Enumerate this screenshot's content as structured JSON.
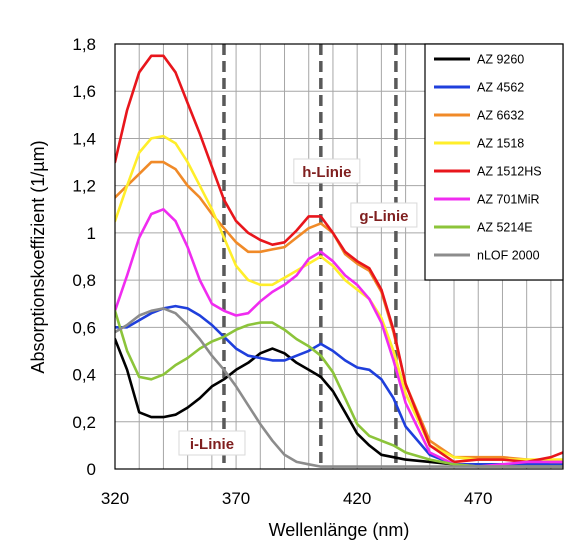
{
  "chart_data": {
    "type": "line",
    "xlabel": "Wellenlänge (nm)",
    "ylabel": "Absorptionskoeffizient (1/µm)",
    "xlim": [
      320,
      505
    ],
    "ylim": [
      0,
      1.8
    ],
    "x_ticks": [
      320,
      370,
      420,
      470
    ],
    "x_tick_labels": [
      "320",
      "370",
      "420",
      "470"
    ],
    "y_ticks": [
      0,
      0.2,
      0.4,
      0.6,
      0.8,
      1.0,
      1.2,
      1.4,
      1.6,
      1.8
    ],
    "y_tick_labels": [
      "0",
      "0,2",
      "0,4",
      "0,6",
      "0,8",
      "1",
      "1,2",
      "1,4",
      "1,6",
      "1,8"
    ],
    "grid": true,
    "legend_position": "top-right",
    "reference_lines": [
      {
        "label": "i-Linie",
        "x": 365
      },
      {
        "label": "h-Linie",
        "x": 405
      },
      {
        "label": "g-Linie",
        "x": 436
      }
    ],
    "series": [
      {
        "name": "AZ 9260",
        "color": "#000000",
        "x": [
          320,
          325,
          330,
          335,
          340,
          345,
          350,
          355,
          360,
          365,
          370,
          375,
          380,
          385,
          390,
          395,
          400,
          405,
          410,
          415,
          420,
          425,
          430,
          435,
          440,
          450,
          460,
          470,
          480,
          490,
          500,
          505
        ],
        "y": [
          0.55,
          0.42,
          0.24,
          0.22,
          0.22,
          0.23,
          0.26,
          0.3,
          0.35,
          0.38,
          0.42,
          0.45,
          0.49,
          0.51,
          0.49,
          0.45,
          0.42,
          0.39,
          0.33,
          0.24,
          0.15,
          0.1,
          0.06,
          0.05,
          0.04,
          0.03,
          0.02,
          0.02,
          0.02,
          0.01,
          0.01,
          0.01
        ]
      },
      {
        "name": "AZ 4562",
        "color": "#1f3fdc",
        "x": [
          320,
          325,
          330,
          335,
          340,
          345,
          350,
          355,
          360,
          365,
          370,
          375,
          380,
          385,
          390,
          395,
          400,
          405,
          410,
          415,
          420,
          425,
          430,
          435,
          440,
          450,
          460,
          470,
          480,
          490,
          500,
          505
        ],
        "y": [
          0.6,
          0.6,
          0.63,
          0.66,
          0.68,
          0.69,
          0.68,
          0.65,
          0.61,
          0.56,
          0.51,
          0.48,
          0.47,
          0.46,
          0.46,
          0.48,
          0.5,
          0.53,
          0.5,
          0.46,
          0.43,
          0.42,
          0.38,
          0.3,
          0.18,
          0.06,
          0.02,
          0.02,
          0.02,
          0.02,
          0.02,
          0.02
        ]
      },
      {
        "name": "AZ 6632",
        "color": "#f08a28",
        "x": [
          320,
          325,
          330,
          335,
          340,
          345,
          350,
          355,
          360,
          365,
          370,
          375,
          380,
          385,
          390,
          395,
          400,
          405,
          410,
          415,
          420,
          425,
          430,
          435,
          440,
          450,
          460,
          470,
          480,
          490,
          500,
          505
        ],
        "y": [
          1.15,
          1.2,
          1.25,
          1.3,
          1.3,
          1.27,
          1.2,
          1.15,
          1.08,
          1.02,
          0.96,
          0.92,
          0.92,
          0.93,
          0.94,
          0.98,
          1.02,
          1.04,
          1.0,
          0.91,
          0.87,
          0.84,
          0.75,
          0.58,
          0.36,
          0.12,
          0.05,
          0.05,
          0.05,
          0.04,
          0.03,
          0.03
        ]
      },
      {
        "name": "AZ 1518",
        "color": "#ffee2a",
        "x": [
          320,
          325,
          330,
          335,
          340,
          345,
          350,
          355,
          360,
          365,
          370,
          375,
          380,
          385,
          390,
          395,
          400,
          405,
          410,
          415,
          420,
          425,
          430,
          435,
          440,
          450,
          460,
          470,
          480,
          490,
          500,
          505
        ],
        "y": [
          1.05,
          1.2,
          1.34,
          1.4,
          1.41,
          1.38,
          1.3,
          1.2,
          1.1,
          0.98,
          0.86,
          0.8,
          0.78,
          0.78,
          0.81,
          0.84,
          0.87,
          0.9,
          0.86,
          0.8,
          0.76,
          0.72,
          0.64,
          0.5,
          0.32,
          0.1,
          0.05,
          0.04,
          0.04,
          0.04,
          0.04,
          0.04
        ]
      },
      {
        "name": "AZ 1512HS",
        "color": "#e8161c",
        "x": [
          320,
          325,
          330,
          335,
          340,
          345,
          350,
          355,
          360,
          365,
          370,
          375,
          380,
          385,
          390,
          395,
          400,
          405,
          410,
          415,
          420,
          425,
          430,
          435,
          440,
          450,
          460,
          470,
          480,
          490,
          500,
          505
        ],
        "y": [
          1.3,
          1.52,
          1.68,
          1.75,
          1.75,
          1.68,
          1.55,
          1.42,
          1.28,
          1.14,
          1.05,
          1.0,
          0.97,
          0.95,
          0.96,
          1.01,
          1.07,
          1.07,
          1.0,
          0.92,
          0.88,
          0.85,
          0.76,
          0.59,
          0.36,
          0.1,
          0.03,
          0.04,
          0.04,
          0.03,
          0.05,
          0.07
        ]
      },
      {
        "name": "AZ 701MiR",
        "color": "#f02cf0",
        "x": [
          320,
          325,
          330,
          335,
          340,
          345,
          350,
          355,
          360,
          365,
          370,
          375,
          380,
          385,
          390,
          395,
          400,
          405,
          410,
          415,
          420,
          425,
          430,
          435,
          440,
          450,
          460,
          470,
          480,
          490,
          500,
          505
        ],
        "y": [
          0.67,
          0.82,
          0.98,
          1.08,
          1.1,
          1.05,
          0.94,
          0.8,
          0.7,
          0.67,
          0.65,
          0.66,
          0.71,
          0.75,
          0.78,
          0.82,
          0.89,
          0.92,
          0.88,
          0.82,
          0.78,
          0.72,
          0.62,
          0.46,
          0.28,
          0.07,
          0.02,
          0.01,
          0.02,
          0.03,
          0.03,
          0.03
        ]
      },
      {
        "name": "AZ 5214E",
        "color": "#8cc43a",
        "x": [
          320,
          325,
          330,
          335,
          340,
          345,
          350,
          355,
          360,
          365,
          370,
          375,
          380,
          385,
          390,
          395,
          400,
          405,
          410,
          415,
          420,
          425,
          430,
          435,
          440,
          450,
          460,
          470,
          480,
          490,
          500,
          505
        ],
        "y": [
          0.67,
          0.5,
          0.39,
          0.38,
          0.4,
          0.44,
          0.47,
          0.51,
          0.54,
          0.56,
          0.59,
          0.61,
          0.62,
          0.62,
          0.59,
          0.55,
          0.52,
          0.48,
          0.41,
          0.3,
          0.19,
          0.14,
          0.12,
          0.1,
          0.07,
          0.04,
          0.02,
          0.01,
          0.01,
          0.01,
          0.01,
          0.01
        ]
      },
      {
        "name": "nLOF 2000",
        "color": "#8c8c8c",
        "x": [
          320,
          325,
          330,
          335,
          340,
          345,
          350,
          355,
          360,
          365,
          370,
          375,
          380,
          385,
          390,
          395,
          400,
          405,
          410,
          415,
          420,
          425,
          430,
          440,
          450,
          460,
          470,
          480,
          490,
          500,
          505
        ],
        "y": [
          0.58,
          0.61,
          0.65,
          0.67,
          0.68,
          0.66,
          0.61,
          0.55,
          0.48,
          0.42,
          0.35,
          0.27,
          0.19,
          0.12,
          0.06,
          0.03,
          0.02,
          0.01,
          0.01,
          0.01,
          0.01,
          0.01,
          0.01,
          0.01,
          0.01,
          0.01,
          0.01,
          0.01,
          0.01,
          0.01,
          0.01
        ]
      }
    ]
  }
}
